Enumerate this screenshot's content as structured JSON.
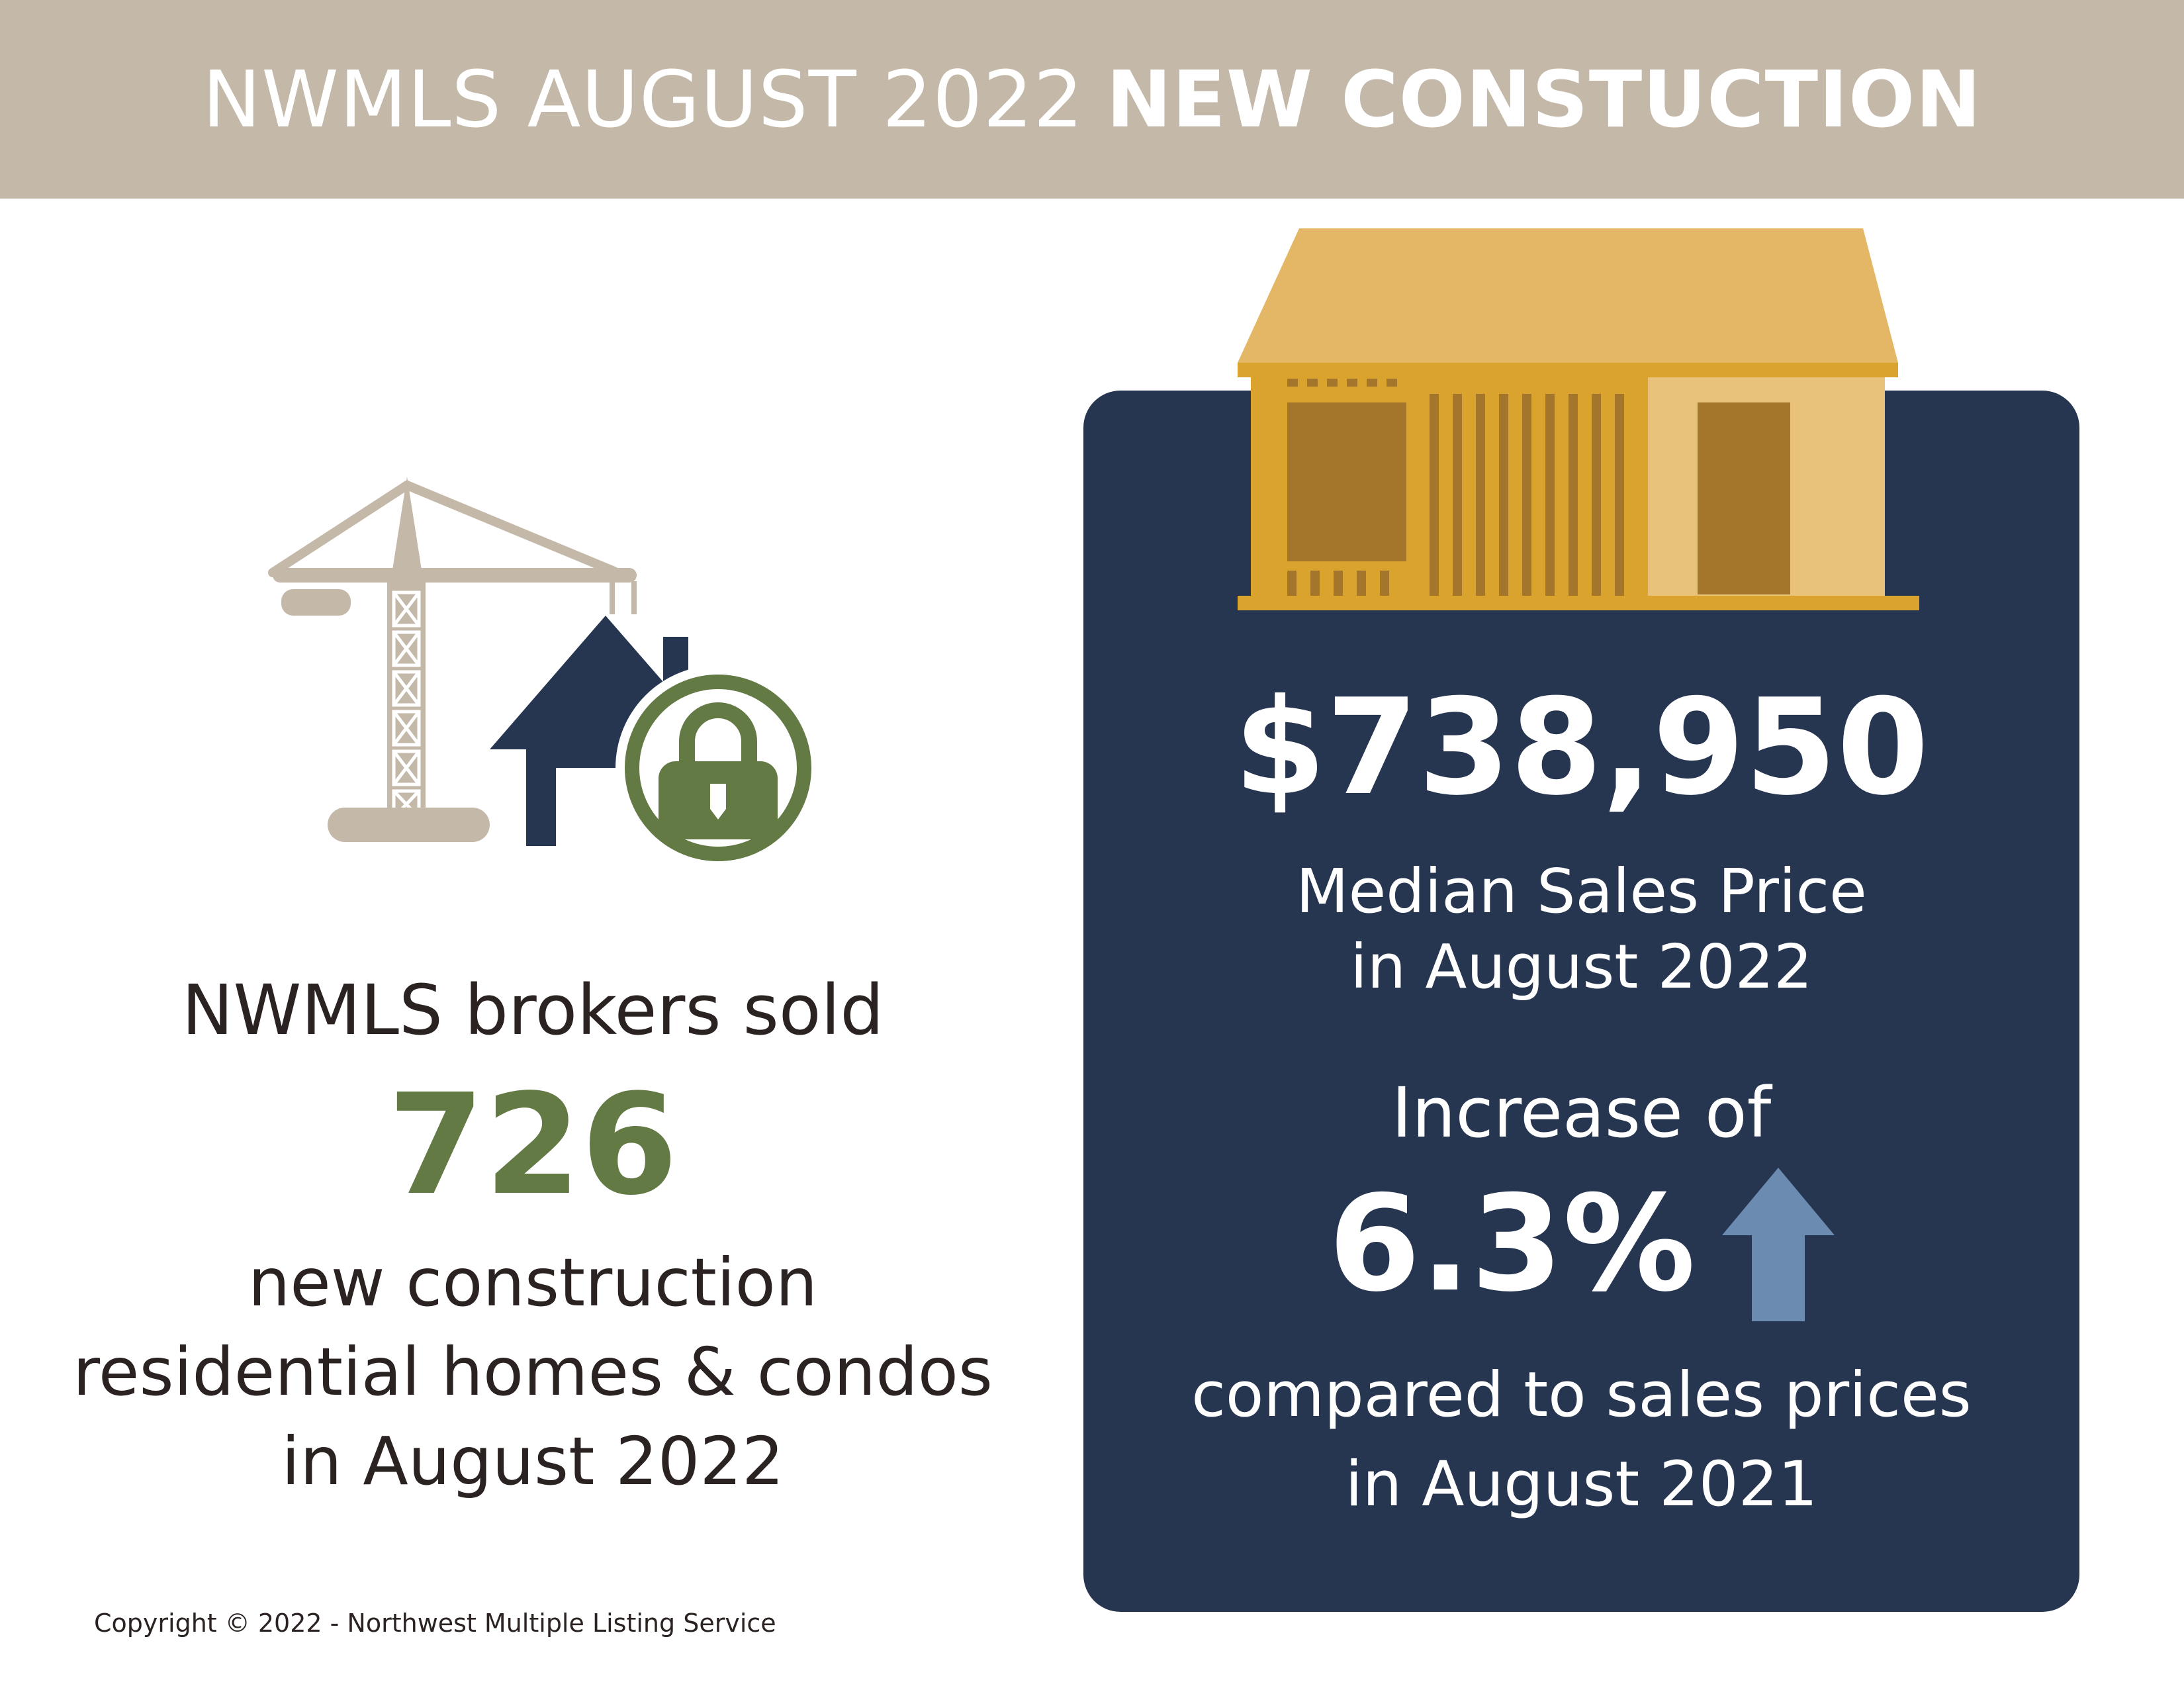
{
  "header": {
    "title_light": "NWMLS AUGUST 2022",
    "title_bold": "NEW CONSTUCTION"
  },
  "left": {
    "lead": "NWMLS brokers sold",
    "count": "726",
    "desc_line1": "new construction",
    "desc_line2": "residential homes & condos",
    "desc_line3": "in August 2022",
    "icons": [
      "crane-icon",
      "house-icon",
      "lock-icon"
    ]
  },
  "panel": {
    "icon": "house-framing-icon",
    "median_price": "$738,950",
    "median_label_line1": "Median Sales Price",
    "median_label_line2": "in August 2022",
    "increase_label": "Increase of",
    "change_value": "6.3%",
    "change_icon": "up-arrow-icon",
    "compare_line1": "compared to sales prices",
    "compare_line2": "in August 2021"
  },
  "footer": {
    "copyright": "Copyright © 2022 - Northwest Multiple Listing Service"
  },
  "colors": {
    "header_bg": "#c4b9a8",
    "panel_bg": "#273650",
    "accent_green": "#637a45",
    "house_gold": "#e3a92f",
    "arrow_blue": "#6b8cb0"
  }
}
